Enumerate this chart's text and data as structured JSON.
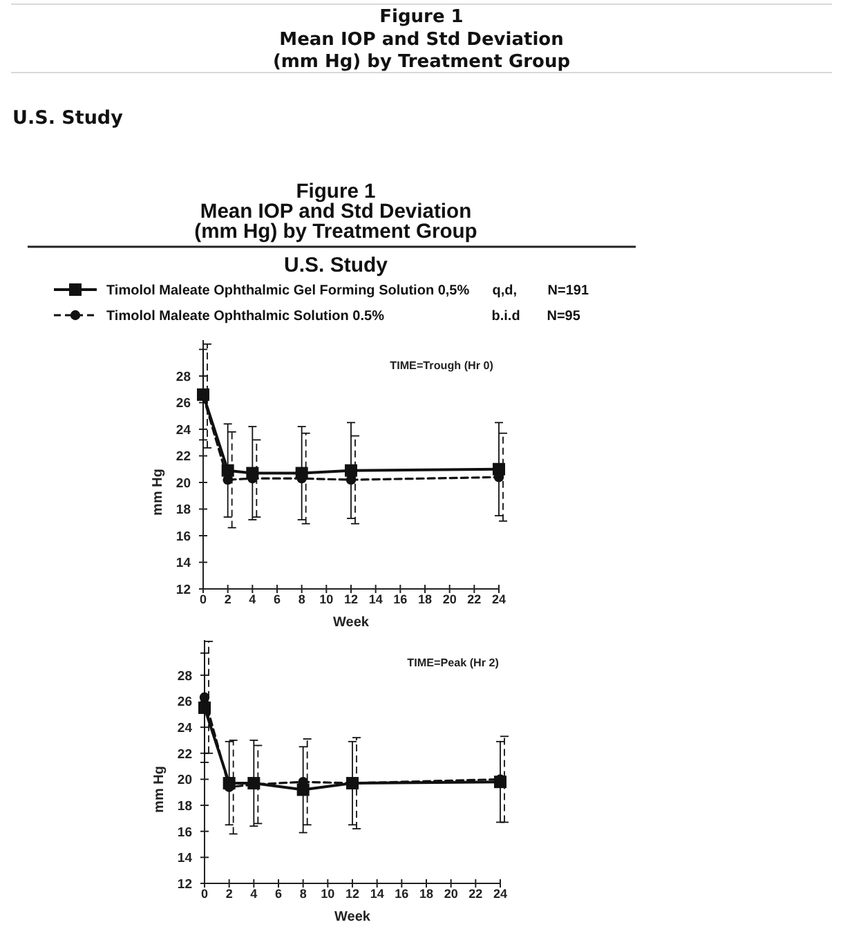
{
  "chart_data": [
    {
      "type": "other",
      "title": "Figure 1\nMean IOP and Std Deviation\n(mm Hg) by Treatment Group",
      "subtitle": "U.S. Study"
    },
    {
      "type": "line",
      "title": "Figure 1\nMean IOP and Std Deviation\n(mm Hg) by Treatment Group",
      "subtitle": "U.S. Study",
      "annotations": [
        "TIME=Trough (Hr 0)"
      ],
      "xlabel": "Week",
      "ylabel": "mm Hg",
      "x": [
        0,
        2,
        4,
        8,
        12,
        24
      ],
      "xlim": [
        0,
        24
      ],
      "xticks": [
        0,
        2,
        4,
        6,
        8,
        10,
        12,
        14,
        16,
        18,
        20,
        22,
        24
      ],
      "ylim": [
        12,
        30.7
      ],
      "yticks": [
        12,
        14,
        16,
        18,
        20,
        22,
        24,
        26,
        28
      ],
      "legend": "top",
      "series": [
        {
          "name": "Timolol Maleate Ophthalmic Gel Forming Solution 0,5% q,d, N=191",
          "color": "#111111",
          "values": [
            26.6,
            20.9,
            20.7,
            20.7,
            20.9,
            21.0
          ],
          "errors": [
            3.4,
            3.5,
            3.5,
            3.5,
            3.6,
            3.5
          ],
          "marker": "square",
          "line_style": "solid"
        },
        {
          "name": "Timolol Maleate Ophthalmic Solution 0.5% b.i.d N=95",
          "color": "#111111",
          "values": [
            26.5,
            20.2,
            20.3,
            20.3,
            20.2,
            20.4
          ],
          "errors": [
            3.9,
            3.6,
            2.9,
            3.4,
            3.3,
            3.3
          ],
          "marker": "circle",
          "line_style": "dashed"
        }
      ]
    },
    {
      "type": "line",
      "annotations": [
        "TIME=Peak (Hr 2)"
      ],
      "xlabel": "Week",
      "ylabel": "mm Hg",
      "x": [
        0,
        2,
        4,
        8,
        12,
        24
      ],
      "xlim": [
        0,
        24
      ],
      "xticks": [
        0,
        2,
        4,
        6,
        8,
        10,
        12,
        14,
        16,
        18,
        20,
        22,
        24
      ],
      "ylim": [
        12,
        30.7
      ],
      "yticks": [
        12,
        14,
        16,
        18,
        20,
        22,
        24,
        26,
        28
      ],
      "series": [
        {
          "color": "#111111",
          "values": [
            25.5,
            19.7,
            19.7,
            19.2,
            19.7,
            19.8
          ],
          "errors": [
            4.2,
            3.2,
            3.3,
            3.3,
            3.2,
            3.1
          ],
          "marker": "square",
          "line_style": "solid"
        },
        {
          "color": "#111111",
          "values": [
            26.3,
            19.4,
            19.6,
            19.8,
            19.7,
            20.0
          ],
          "errors": [
            4.3,
            3.6,
            3.0,
            3.3,
            3.5,
            3.3
          ],
          "marker": "circle",
          "line_style": "dashed"
        }
      ]
    }
  ]
}
